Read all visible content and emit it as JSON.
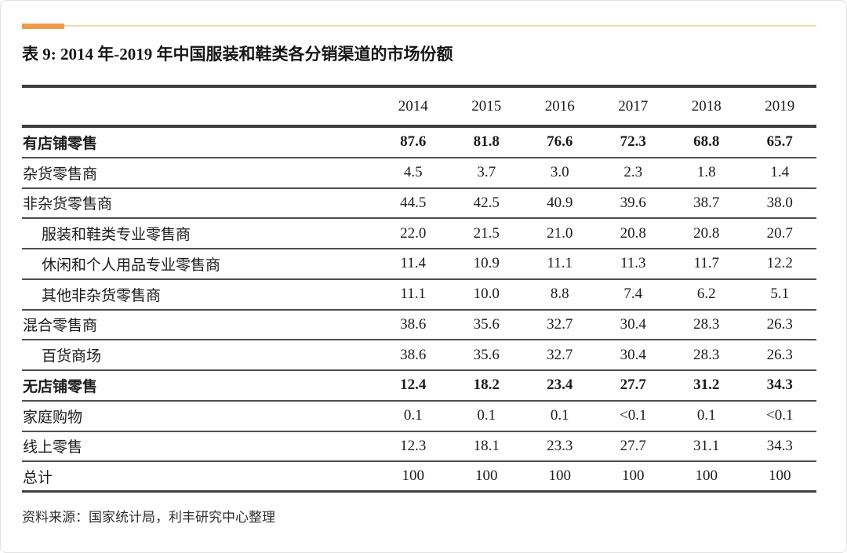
{
  "title": "表 9: 2014 年-2019 年中国服装和鞋类各分销渠道的市场份额",
  "source_note": "资料来源：国家统计局，利丰研究中心整理",
  "colors": {
    "accent_bar": "#EF9A4D",
    "accent_line": "#E8DBB4",
    "rule_heavy": "#3F3F3F",
    "rule_light": "#4F4F4F",
    "text": "#1C1C1C"
  },
  "table": {
    "years": [
      "2014",
      "2015",
      "2016",
      "2017",
      "2018",
      "2019"
    ],
    "rows": [
      {
        "label": "有店铺零售",
        "bold": true,
        "indent": 0,
        "values": [
          "87.6",
          "81.8",
          "76.6",
          "72.3",
          "68.8",
          "65.7"
        ]
      },
      {
        "label": "杂货零售商",
        "bold": false,
        "indent": 0,
        "values": [
          "4.5",
          "3.7",
          "3.0",
          "2.3",
          "1.8",
          "1.4"
        ]
      },
      {
        "label": "非杂货零售商",
        "bold": false,
        "indent": 0,
        "values": [
          "44.5",
          "42.5",
          "40.9",
          "39.6",
          "38.7",
          "38.0"
        ]
      },
      {
        "label": "服装和鞋类专业零售商",
        "bold": false,
        "indent": 1,
        "values": [
          "22.0",
          "21.5",
          "21.0",
          "20.8",
          "20.8",
          "20.7"
        ]
      },
      {
        "label": "休闲和个人用品专业零售商",
        "bold": false,
        "indent": 1,
        "values": [
          "11.4",
          "10.9",
          "11.1",
          "11.3",
          "11.7",
          "12.2"
        ]
      },
      {
        "label": "其他非杂货零售商",
        "bold": false,
        "indent": 1,
        "values": [
          "11.1",
          "10.0",
          "8.8",
          "7.4",
          "6.2",
          "5.1"
        ]
      },
      {
        "label": "混合零售商",
        "bold": false,
        "indent": 0,
        "values": [
          "38.6",
          "35.6",
          "32.7",
          "30.4",
          "28.3",
          "26.3"
        ]
      },
      {
        "label": "百货商场",
        "bold": false,
        "indent": 1,
        "values": [
          "38.6",
          "35.6",
          "32.7",
          "30.4",
          "28.3",
          "26.3"
        ]
      },
      {
        "label": "无店铺零售",
        "bold": true,
        "indent": 0,
        "values": [
          "12.4",
          "18.2",
          "23.4",
          "27.7",
          "31.2",
          "34.3"
        ]
      },
      {
        "label": "家庭购物",
        "bold": false,
        "indent": 0,
        "values": [
          "0.1",
          "0.1",
          "0.1",
          "<0.1",
          "0.1",
          "<0.1"
        ]
      },
      {
        "label": "线上零售",
        "bold": false,
        "indent": 0,
        "values": [
          "12.3",
          "18.1",
          "23.3",
          "27.7",
          "31.1",
          "34.3"
        ]
      },
      {
        "label": "总计",
        "bold": false,
        "indent": 0,
        "values": [
          "100",
          "100",
          "100",
          "100",
          "100",
          "100"
        ]
      }
    ]
  }
}
